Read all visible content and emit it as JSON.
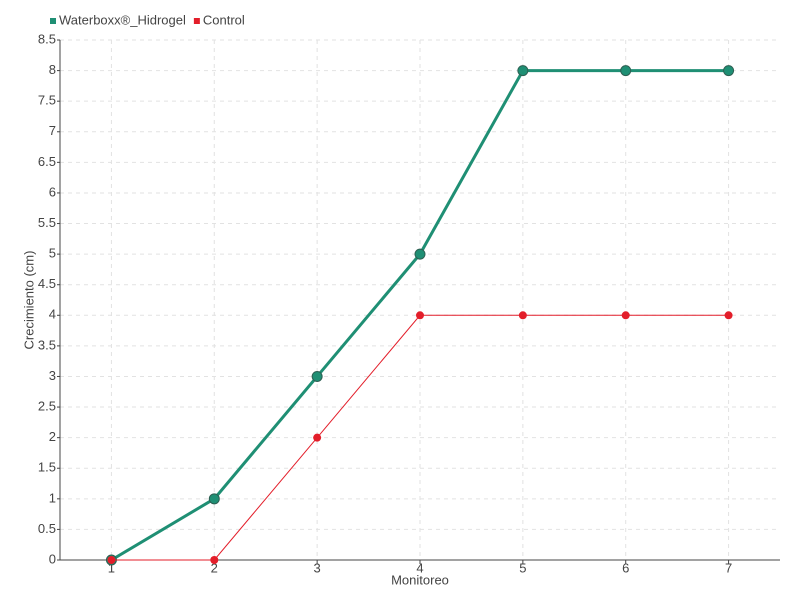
{
  "chart_data": {
    "type": "line",
    "x_label": "Monitoreo",
    "y_label": "Crecimiento (cm)",
    "categories": [
      "1",
      "2",
      "3",
      "4",
      "5",
      "6",
      "7"
    ],
    "series": [
      {
        "name": "Waterboxx®_Hidrogel",
        "color": "#1f8f74",
        "values": [
          0,
          1,
          3,
          5,
          8,
          8,
          8
        ]
      },
      {
        "name": "Control",
        "color": "#e31e2a",
        "values": [
          0,
          0,
          2,
          4,
          4,
          4,
          4
        ]
      }
    ],
    "ylim": [
      0,
      8.5
    ],
    "yticks": [
      0,
      0.5,
      1,
      1.5,
      2,
      2.5,
      3,
      3.5,
      4,
      4.5,
      5,
      5.5,
      6,
      6.5,
      7,
      7.5,
      8,
      8.5
    ],
    "grid": true,
    "legend": "top-left"
  }
}
